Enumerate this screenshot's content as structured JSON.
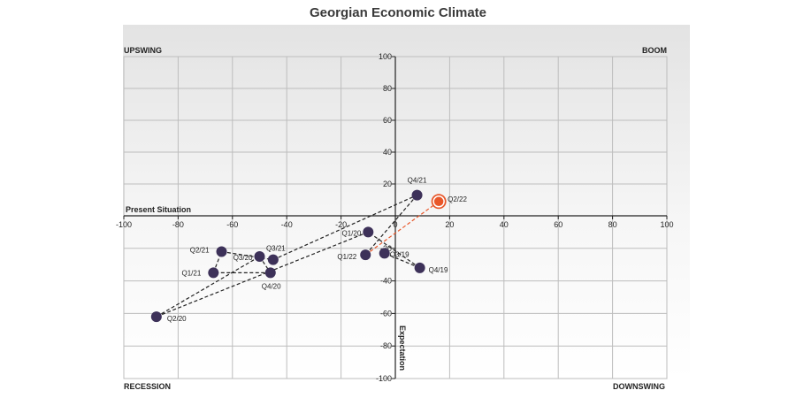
{
  "chart_data": {
    "type": "scatter",
    "title": "Georgian Economic Climate",
    "xlabel": "Present Situation",
    "ylabel": "Expectation",
    "xlim": [
      -100,
      100
    ],
    "ylim": [
      -100,
      100
    ],
    "xticks": [
      -100,
      -80,
      -60,
      -40,
      -20,
      0,
      20,
      40,
      60,
      80,
      100
    ],
    "yticks": [
      100,
      80,
      60,
      40,
      20,
      -20,
      -40,
      -60,
      -80,
      -100
    ],
    "grid": true,
    "quadrants": {
      "top_left": "UPSWING",
      "top_right": "BOOM",
      "bottom_left": "RECESSION",
      "bottom_right": "DOWNSWING"
    },
    "points": [
      {
        "label": "Q3/19",
        "x": -4,
        "y": -23
      },
      {
        "label": "Q4/19",
        "x": 9,
        "y": -32
      },
      {
        "label": "Q1/20",
        "x": -10,
        "y": -10
      },
      {
        "label": "Q2/20",
        "x": -88,
        "y": -62
      },
      {
        "label": "Q3/20",
        "x": -50,
        "y": -25
      },
      {
        "label": "Q4/20",
        "x": -46,
        "y": -35
      },
      {
        "label": "Q1/21",
        "x": -67,
        "y": -35
      },
      {
        "label": "Q2/21",
        "x": -64,
        "y": -22
      },
      {
        "label": "Q3/21",
        "x": -45,
        "y": -27
      },
      {
        "label": "Q4/21",
        "x": 8,
        "y": 13
      },
      {
        "label": "Q1/22",
        "x": -11,
        "y": -24
      },
      {
        "label": "Q2/22",
        "x": 16,
        "y": 9
      }
    ],
    "colors": {
      "point": "#3d3159",
      "highlight": "#e8572a",
      "highlight_line": "#e8572a",
      "line": "#222222"
    }
  }
}
